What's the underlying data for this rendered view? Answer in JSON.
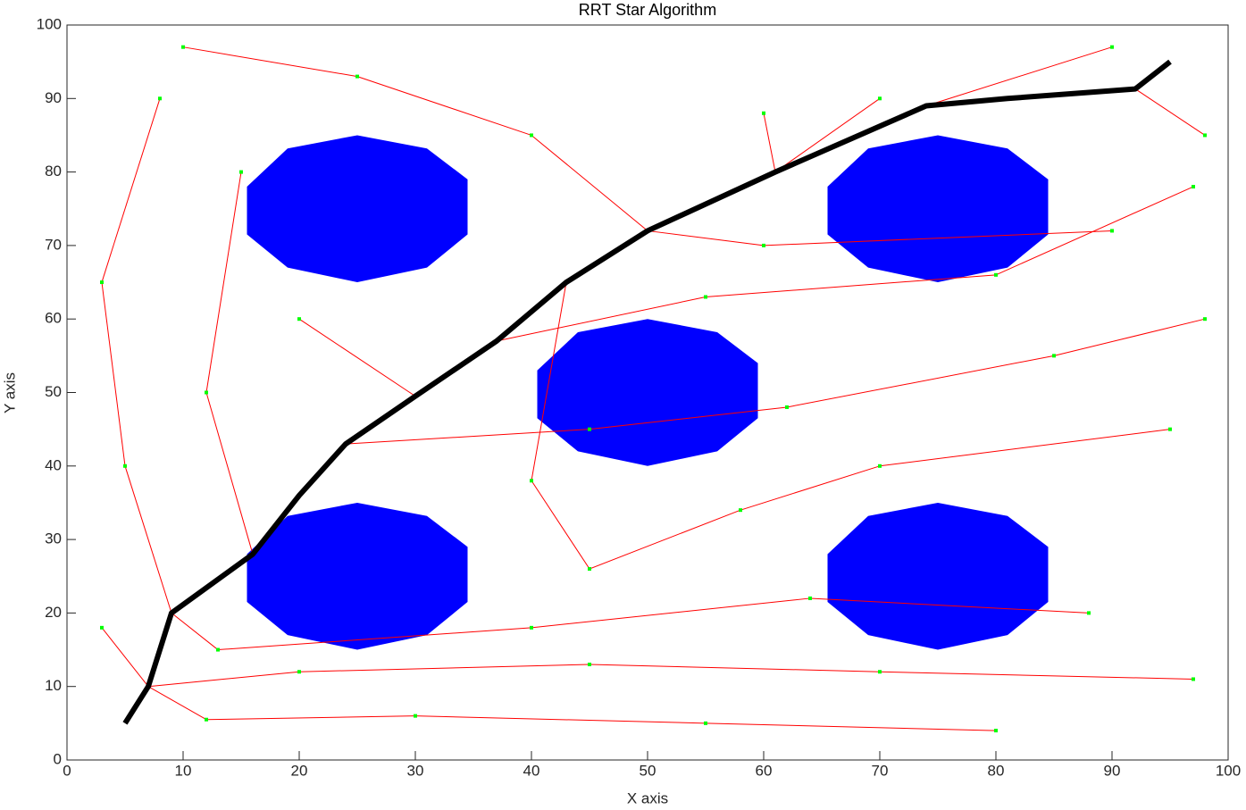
{
  "chart_data": {
    "type": "rrt",
    "title": "RRT Star Algorithm",
    "x_label": "X axis",
    "y_label": "Y axis",
    "xlim": [
      0,
      100
    ],
    "ylim": [
      0,
      100
    ],
    "xticks": [
      0,
      10,
      20,
      30,
      40,
      50,
      60,
      70,
      80,
      90,
      100
    ],
    "yticks": [
      0,
      10,
      20,
      30,
      40,
      50,
      60,
      70,
      80,
      90,
      100
    ],
    "obstacle_color": "#0000ff",
    "edge_color": "#ff0000",
    "node_color": "#00ff00",
    "path_color": "#000000",
    "obstacles": [
      {
        "x": [
          25,
          31,
          34.5,
          34.5,
          31,
          25,
          19,
          15.5,
          15.5,
          19
        ],
        "y": [
          35,
          33.2,
          29,
          21.5,
          17,
          15,
          17,
          21.5,
          28,
          33.2
        ]
      },
      {
        "x": [
          75,
          81,
          84.5,
          84.5,
          81,
          75,
          69,
          65.5,
          65.5,
          69
        ],
        "y": [
          35,
          33.2,
          29,
          21.5,
          17,
          15,
          17,
          21.5,
          28,
          33.2
        ]
      },
      {
        "x": [
          50,
          56,
          59.5,
          59.5,
          56,
          50,
          44,
          40.5,
          40.5,
          44
        ],
        "y": [
          60,
          58.2,
          54,
          46.5,
          42,
          40,
          42,
          46.5,
          53,
          58.2
        ]
      },
      {
        "x": [
          25,
          31,
          34.5,
          34.5,
          31,
          25,
          19,
          15.5,
          15.5,
          19
        ],
        "y": [
          85,
          83.2,
          79,
          71.5,
          67,
          65,
          67,
          71.5,
          78,
          83.2
        ]
      },
      {
        "x": [
          75,
          81,
          84.5,
          84.5,
          81,
          75,
          69,
          65.5,
          65.5,
          69
        ],
        "y": [
          85,
          83.2,
          79,
          71.5,
          67,
          65,
          67,
          71.5,
          78,
          83.2
        ]
      }
    ],
    "tree": {
      "x1": [
        7,
        12,
        30,
        55,
        7,
        20,
        45,
        70,
        9,
        13,
        40,
        64,
        24,
        45,
        62,
        85,
        37,
        55,
        80,
        61,
        50,
        40,
        25,
        9,
        5,
        3,
        16,
        12,
        43,
        40,
        45,
        58,
        70,
        74,
        92,
        30,
        61,
        50,
        60,
        7
      ],
      "y1": [
        10,
        5.5,
        6,
        5,
        10,
        12,
        13,
        12,
        20,
        15,
        18,
        22,
        43,
        45,
        48,
        55,
        57,
        63,
        66,
        80,
        72,
        85,
        93,
        20,
        40,
        65,
        28,
        50,
        65,
        38,
        26,
        34,
        40,
        89,
        91.3,
        49.5,
        80,
        72,
        70,
        10
      ],
      "x2": [
        12,
        30,
        55,
        80,
        20,
        45,
        70,
        97,
        13,
        40,
        64,
        88,
        45,
        62,
        85,
        98,
        55,
        80,
        97,
        70,
        40,
        25,
        10,
        5,
        3,
        8,
        12,
        15,
        40,
        45,
        58,
        70,
        95,
        90,
        98,
        20,
        60,
        60,
        90,
        3
      ],
      "y2": [
        5.5,
        6,
        5,
        4,
        12,
        13,
        12,
        11,
        15,
        18,
        22,
        20,
        45,
        48,
        55,
        60,
        63,
        66,
        78,
        90,
        85,
        93,
        97,
        40,
        65,
        90,
        50,
        80,
        38,
        26,
        34,
        40,
        45,
        97,
        85,
        60,
        88,
        70,
        72,
        18
      ]
    },
    "path": {
      "x": [
        5,
        7,
        9,
        16,
        20,
        24,
        30,
        37,
        43,
        50,
        61,
        74,
        81,
        92,
        95
      ],
      "y": [
        5,
        10,
        20,
        28,
        36,
        43,
        49.5,
        57,
        65,
        72,
        80,
        89,
        90,
        91.3,
        95
      ]
    }
  }
}
